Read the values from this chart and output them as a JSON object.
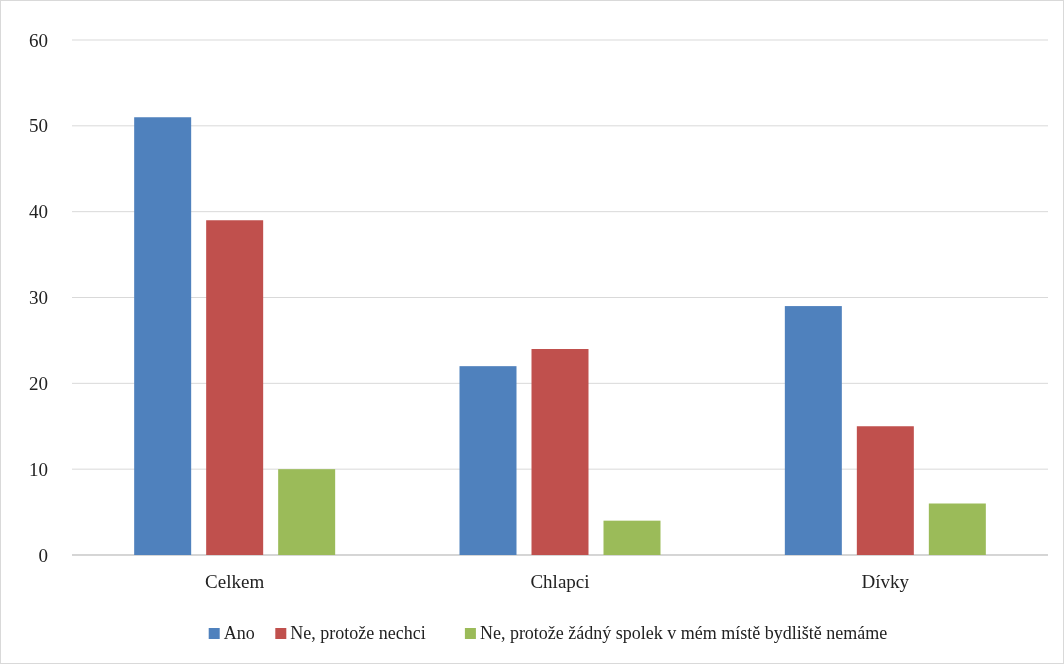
{
  "chart_data": {
    "type": "bar",
    "categories": [
      "Celkem",
      "Chlapci",
      "Dívky"
    ],
    "series": [
      {
        "name": "Ano",
        "color": "#4f81bd",
        "values": [
          51,
          22,
          29
        ]
      },
      {
        "name": "Ne, protože nechci",
        "color": "#c0504d",
        "values": [
          39,
          24,
          15
        ]
      },
      {
        "name": "Ne, protože žádný spolek v mém místě bydliště nemáme",
        "color": "#9bbb59",
        "values": [
          10,
          4,
          6
        ]
      }
    ],
    "ylim": [
      0,
      60
    ],
    "yticks": [
      0,
      10,
      20,
      30,
      40,
      50,
      60
    ],
    "grid": "y",
    "legend": "bottom"
  }
}
